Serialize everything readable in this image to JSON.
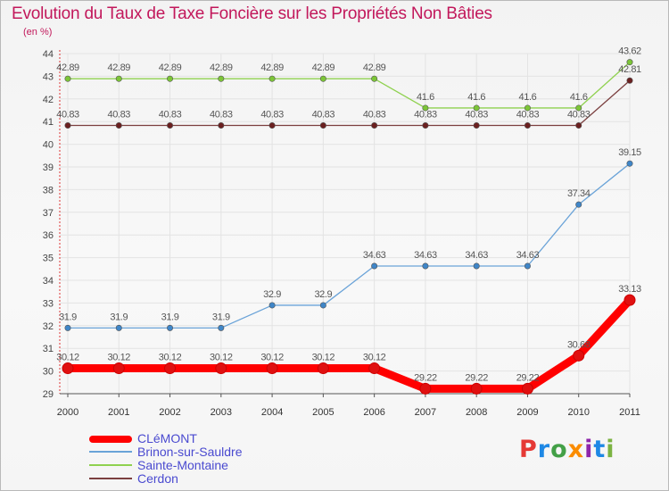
{
  "chart_data": {
    "type": "line",
    "title": "Evolution du Taux de Taxe Foncière sur les Propriétés Non Bâties",
    "ylabel": "(en %)",
    "xlabel": "",
    "categories": [
      "2000",
      "2001",
      "2002",
      "2003",
      "2004",
      "2005",
      "2006",
      "2007",
      "2008",
      "2009",
      "2010",
      "2011"
    ],
    "ylim": [
      29,
      44
    ],
    "yticks": [
      29,
      30,
      31,
      32,
      33,
      34,
      35,
      36,
      37,
      38,
      39,
      40,
      41,
      42,
      43,
      44
    ],
    "grid": true,
    "legend_position": "bottom-left",
    "series": [
      {
        "name": "Sainte-Montaine",
        "color": "#8fd14f",
        "marker_color": "#7cc537",
        "values": [
          42.89,
          42.89,
          42.89,
          42.89,
          42.89,
          42.89,
          42.89,
          41.6,
          41.6,
          41.6,
          41.6,
          43.62
        ],
        "labels": [
          "42.89",
          "42.89",
          "42.89",
          "42.89",
          "42.89",
          "42.89",
          "42.89",
          "41.6",
          "41.6",
          "41.6",
          "41.6",
          "43.62"
        ]
      },
      {
        "name": "Cerdon",
        "color": "#7b3f3f",
        "marker_color": "#6b2020",
        "values": [
          40.83,
          40.83,
          40.83,
          40.83,
          40.83,
          40.83,
          40.83,
          40.83,
          40.83,
          40.83,
          40.83,
          42.81
        ],
        "labels": [
          "40.83",
          "40.83",
          "40.83",
          "40.83",
          "40.83",
          "40.83",
          "40.83",
          "40.83",
          "40.83",
          "40.83",
          "40.83",
          "42.81"
        ]
      },
      {
        "name": "Brinon-sur-Sauldre",
        "color": "#6aa3d8",
        "marker_color": "#3f86c8",
        "values": [
          31.9,
          31.9,
          31.9,
          31.9,
          32.9,
          32.9,
          34.63,
          34.63,
          34.63,
          34.63,
          37.34,
          39.15
        ],
        "labels": [
          "31.9",
          "31.9",
          "31.9",
          "31.9",
          "32.9",
          "32.9",
          "34.63",
          "34.63",
          "34.63",
          "34.63",
          "37.34",
          "39.15"
        ]
      },
      {
        "name": "CLéMONT",
        "color": "#ff0000",
        "marker_color": "#e01010",
        "values": [
          30.12,
          30.12,
          30.12,
          30.12,
          30.12,
          30.12,
          30.12,
          29.22,
          29.22,
          29.22,
          30.68,
          33.13
        ],
        "labels": [
          "30.12",
          "30.12",
          "30.12",
          "30.12",
          "30.12",
          "30.12",
          "30.12",
          "29.22",
          "29.22",
          "29.22",
          "30.68",
          "33.13"
        ]
      }
    ]
  },
  "legend": {
    "items": [
      {
        "label": "CLéMONT",
        "color": "#ff0000"
      },
      {
        "label": "Brinon-sur-Sauldre",
        "color": "#6aa3d8"
      },
      {
        "label": "Sainte-Montaine",
        "color": "#8fd14f"
      },
      {
        "label": "Cerdon",
        "color": "#7b3f3f"
      }
    ]
  },
  "logo": {
    "p": "P",
    "r": "r",
    "o": "o",
    "x": "x",
    "i1": "i",
    "t": "t",
    "i2": "i"
  }
}
